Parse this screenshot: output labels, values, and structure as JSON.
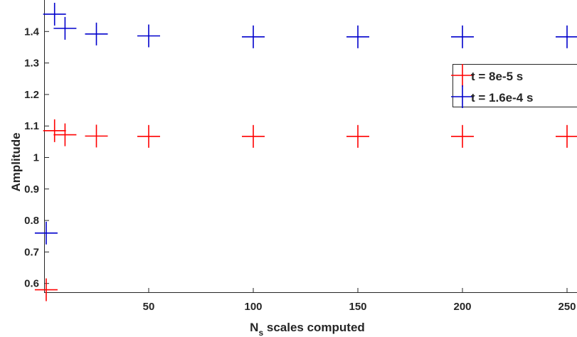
{
  "chart_data": {
    "type": "scatter",
    "xlabel_main": "N",
    "xlabel_sub": "s",
    "xlabel_rest": " scales computed",
    "ylabel": "Amplitude",
    "xlim": [
      0,
      250
    ],
    "ylim": [
      0.57,
      1.5
    ],
    "xticks": [
      50,
      100,
      150,
      200,
      250
    ],
    "yticks": [
      0.6,
      0.7,
      0.8,
      0.9,
      1.0,
      1.1,
      1.2,
      1.3,
      1.4
    ],
    "ytick_labels": [
      "0.6",
      "0.7",
      "0.8",
      "0.9",
      "1",
      "1.1",
      "1.2",
      "1.3",
      "1.4"
    ],
    "grid": false,
    "legend_position": "right",
    "series": [
      {
        "name": "t = 8e-5 s",
        "color": "#ff0000",
        "marker": "plus",
        "x": [
          1,
          5,
          10,
          25,
          50,
          100,
          150,
          200,
          250
        ],
        "y": [
          0.58,
          1.085,
          1.072,
          1.068,
          1.067,
          1.067,
          1.067,
          1.067,
          1.067
        ]
      },
      {
        "name": "t = 1.6e-4 s",
        "color": "#0000cc",
        "marker": "plus",
        "x": [
          1,
          5,
          10,
          25,
          50,
          100,
          150,
          200,
          250
        ],
        "y": [
          0.76,
          1.455,
          1.41,
          1.392,
          1.386,
          1.383,
          1.383,
          1.383,
          1.383
        ]
      }
    ]
  }
}
